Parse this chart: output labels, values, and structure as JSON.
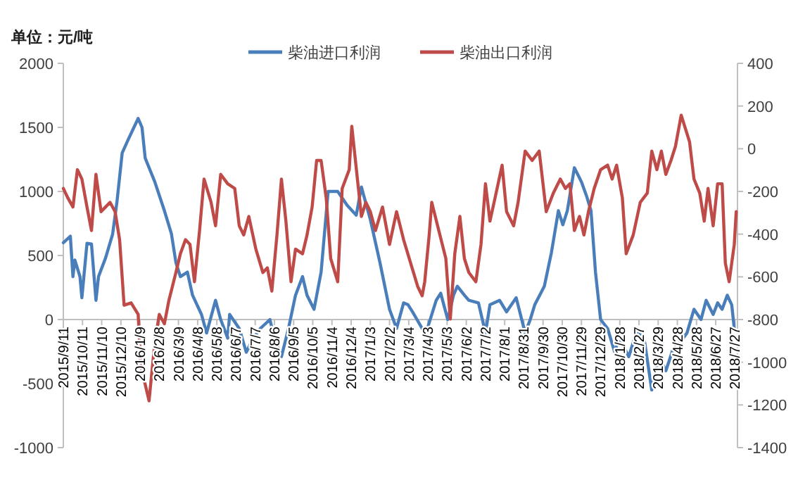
{
  "chart_data": {
    "type": "line",
    "ylabel": "单位：元/吨",
    "legend": "top",
    "xlim": [
      "2015-09-11",
      "2018-07-31"
    ],
    "ylim": [
      -1000,
      2000
    ],
    "yticks": [
      -1000,
      -500,
      0,
      500,
      1000,
      1500,
      2000
    ],
    "y2lim": [
      -1400,
      400
    ],
    "y2ticks": [
      -1400,
      -1200,
      -1000,
      -800,
      -600,
      -400,
      -200,
      0,
      200,
      400
    ],
    "xticks": [
      {
        "value": "2015-09-11",
        "label": "2015/9/11"
      },
      {
        "value": "2015-10-11",
        "label": "2015/10/11"
      },
      {
        "value": "2015-11-10",
        "label": "2015/11/10"
      },
      {
        "value": "2015-12-10",
        "label": "2015/12/10"
      },
      {
        "value": "2016-01-09",
        "label": "2016/1/9"
      },
      {
        "value": "2016-02-08",
        "label": "2016/2/8"
      },
      {
        "value": "2016-03-09",
        "label": "2016/3/9"
      },
      {
        "value": "2016-04-08",
        "label": "2016/4/8"
      },
      {
        "value": "2016-05-08",
        "label": "2016/5/8"
      },
      {
        "value": "2016-06-07",
        "label": "2016/6/7"
      },
      {
        "value": "2016-07-07",
        "label": "2016/7/7"
      },
      {
        "value": "2016-08-06",
        "label": "2016/8/6"
      },
      {
        "value": "2016-09-05",
        "label": "2016/9/5"
      },
      {
        "value": "2016-10-05",
        "label": "2016/10/5"
      },
      {
        "value": "2016-11-04",
        "label": "2016/11/4"
      },
      {
        "value": "2016-12-04",
        "label": "2016/12/4"
      },
      {
        "value": "2017-01-03",
        "label": "2017/1/3"
      },
      {
        "value": "2017-02-02",
        "label": "2017/2/2"
      },
      {
        "value": "2017-03-04",
        "label": "2017/3/4"
      },
      {
        "value": "2017-04-03",
        "label": "2017/4/3"
      },
      {
        "value": "2017-05-03",
        "label": "2017/5/3"
      },
      {
        "value": "2017-06-02",
        "label": "2017/6/2"
      },
      {
        "value": "2017-07-02",
        "label": "2017/7/2"
      },
      {
        "value": "2017-08-01",
        "label": "2017/8/1"
      },
      {
        "value": "2017-08-31",
        "label": "2017/8/31"
      },
      {
        "value": "2017-09-30",
        "label": "2017/9/30"
      },
      {
        "value": "2017-10-30",
        "label": "2017/10/30"
      },
      {
        "value": "2017-11-29",
        "label": "2017/11/29"
      },
      {
        "value": "2017-12-29",
        "label": "2017/12/29"
      },
      {
        "value": "2018-01-28",
        "label": "2018/1/28"
      },
      {
        "value": "2018-02-27",
        "label": "2018/2/27"
      },
      {
        "value": "2018-03-29",
        "label": "2018/3/29"
      },
      {
        "value": "2018-04-28",
        "label": "2018/4/28"
      },
      {
        "value": "2018-05-28",
        "label": "2018/5/28"
      },
      {
        "value": "2018-06-27",
        "label": "2018/6/27"
      },
      {
        "value": "2018-07-27",
        "label": "2018/7/27"
      }
    ],
    "series": [
      {
        "name": "柴油进口利润",
        "color": "#4a7ebb",
        "type": "line",
        "x": [
          "2015-09-11",
          "2015-09-22",
          "2015-09-26",
          "2015-09-29",
          "2015-10-07",
          "2015-10-10",
          "2015-10-18",
          "2015-10-25",
          "2015-11-01",
          "2015-11-05",
          "2015-11-16",
          "2015-11-27",
          "2015-12-04",
          "2015-12-12",
          "2015-12-21",
          "2016-01-06",
          "2016-01-12",
          "2016-01-17",
          "2016-02-01",
          "2016-02-16",
          "2016-02-27",
          "2016-03-05",
          "2016-03-12",
          "2016-03-23",
          "2016-03-31",
          "2016-04-14",
          "2016-04-22",
          "2016-05-06",
          "2016-05-14",
          "2016-05-25",
          "2016-05-28",
          "2016-06-12",
          "2016-06-23",
          "2016-07-04",
          "2016-07-15",
          "2016-07-30",
          "2016-08-06",
          "2016-08-17",
          "2016-08-28",
          "2016-09-08",
          "2016-09-19",
          "2016-09-26",
          "2016-10-07",
          "2016-10-18",
          "2016-10-29",
          "2016-11-13",
          "2016-11-28",
          "2016-12-12",
          "2016-12-20",
          "2017-01-03",
          "2017-01-18",
          "2017-02-02",
          "2017-02-13",
          "2017-02-24",
          "2017-03-03",
          "2017-03-10",
          "2017-03-25",
          "2017-03-31",
          "2017-04-16",
          "2017-04-23",
          "2017-05-04",
          "2017-05-13",
          "2017-05-19",
          "2017-05-30",
          "2017-06-06",
          "2017-06-21",
          "2017-07-02",
          "2017-07-09",
          "2017-07-24",
          "2017-08-04",
          "2017-08-19",
          "2017-09-02",
          "2017-09-10",
          "2017-09-17",
          "2017-10-02",
          "2017-10-13",
          "2017-10-24",
          "2017-10-31",
          "2017-11-07",
          "2017-11-18",
          "2017-11-29",
          "2017-12-07",
          "2017-12-14",
          "2017-12-21",
          "2017-12-29",
          "2018-01-09",
          "2018-01-20",
          "2018-01-27",
          "2018-02-11",
          "2018-02-25",
          "2018-03-08",
          "2018-03-19",
          "2018-03-30",
          "2018-04-10",
          "2018-04-21",
          "2018-05-02",
          "2018-05-13",
          "2018-05-24",
          "2018-06-04",
          "2018-06-12",
          "2018-06-23",
          "2018-06-30",
          "2018-07-07",
          "2018-07-15",
          "2018-07-22",
          "2018-07-26"
        ],
        "values": [
          600,
          650,
          335,
          465,
          335,
          170,
          595,
          590,
          150,
          335,
          480,
          665,
          925,
          1300,
          1400,
          1570,
          1500,
          1260,
          1075,
          850,
          670,
          445,
          335,
          370,
          190,
          40,
          -105,
          150,
          0,
          -145,
          40,
          -70,
          -255,
          -145,
          -70,
          0,
          -145,
          -290,
          -70,
          190,
          335,
          190,
          80,
          370,
          1000,
          1000,
          890,
          815,
          1035,
          780,
          445,
          80,
          -70,
          130,
          115,
          60,
          -70,
          -105,
          150,
          205,
          0,
          190,
          260,
          190,
          150,
          130,
          -105,
          115,
          150,
          60,
          170,
          -105,
          0,
          115,
          260,
          520,
          850,
          740,
          850,
          1185,
          1075,
          965,
          850,
          370,
          0,
          -70,
          -255,
          -145,
          -290,
          -70,
          -180,
          -550,
          -290,
          -400,
          -235,
          -180,
          -105,
          80,
          0,
          150,
          40,
          130,
          80,
          190,
          115,
          -70
        ]
      },
      {
        "name": "柴油出口利润",
        "color": "#be4b48",
        "type": "line",
        "axis": "y2",
        "x": [
          "2015-09-11",
          "2015-09-18",
          "2015-09-26",
          "2015-10-03",
          "2015-10-10",
          "2015-10-18",
          "2015-10-25",
          "2015-11-01",
          "2015-11-09",
          "2015-11-16",
          "2015-11-23",
          "2015-12-01",
          "2015-12-08",
          "2015-12-15",
          "2015-12-26",
          "2016-01-06",
          "2016-01-10",
          "2016-01-17",
          "2016-01-23",
          "2016-02-01",
          "2016-02-08",
          "2016-02-16",
          "2016-02-23",
          "2016-03-05",
          "2016-03-12",
          "2016-03-20",
          "2016-03-27",
          "2016-04-03",
          "2016-04-11",
          "2016-04-18",
          "2016-04-29",
          "2016-05-06",
          "2016-05-14",
          "2016-05-25",
          "2016-06-05",
          "2016-06-12",
          "2016-06-19",
          "2016-06-27",
          "2016-07-08",
          "2016-07-19",
          "2016-07-26",
          "2016-08-02",
          "2016-08-10",
          "2016-08-17",
          "2016-08-24",
          "2016-09-01",
          "2016-09-08",
          "2016-09-19",
          "2016-09-26",
          "2016-10-04",
          "2016-10-11",
          "2016-10-18",
          "2016-10-26",
          "2016-11-02",
          "2016-11-13",
          "2016-11-20",
          "2016-12-01",
          "2016-12-05",
          "2016-12-20",
          "2016-12-27",
          "2017-01-03",
          "2017-01-11",
          "2017-01-22",
          "2017-02-02",
          "2017-02-13",
          "2017-02-24",
          "2017-03-07",
          "2017-03-18",
          "2017-03-25",
          "2017-03-29",
          "2017-04-05",
          "2017-04-09",
          "2017-04-20",
          "2017-05-01",
          "2017-05-08",
          "2017-05-15",
          "2017-05-23",
          "2017-05-30",
          "2017-06-06",
          "2017-06-17",
          "2017-06-25",
          "2017-07-02",
          "2017-07-09",
          "2017-07-17",
          "2017-07-28",
          "2017-08-04",
          "2017-08-15",
          "2017-08-22",
          "2017-09-02",
          "2017-09-13",
          "2017-09-24",
          "2017-10-05",
          "2017-10-16",
          "2017-10-27",
          "2017-11-04",
          "2017-11-11",
          "2017-11-18",
          "2017-11-26",
          "2017-12-03",
          "2017-12-10",
          "2017-12-19",
          "2017-12-29",
          "2018-01-09",
          "2018-01-16",
          "2018-01-23",
          "2018-02-01",
          "2018-02-07",
          "2018-02-18",
          "2018-03-01",
          "2018-03-12",
          "2018-03-19",
          "2018-03-27",
          "2018-04-03",
          "2018-04-10",
          "2018-04-18",
          "2018-04-25",
          "2018-05-04",
          "2018-05-17",
          "2018-05-24",
          "2018-06-02",
          "2018-06-09",
          "2018-06-15",
          "2018-06-23",
          "2018-06-30",
          "2018-07-07",
          "2018-07-12",
          "2018-07-18",
          "2018-07-26",
          "2018-07-29"
        ],
        "values": [
          -186,
          -230,
          -273,
          -98,
          -142,
          -273,
          -383,
          -120,
          -295,
          -273,
          -251,
          -295,
          -426,
          -733,
          -722,
          -776,
          -1017,
          -1104,
          -1181,
          -908,
          -776,
          -820,
          -711,
          -580,
          -492,
          -426,
          -448,
          -623,
          -383,
          -142,
          -251,
          -361,
          -120,
          -164,
          -186,
          -361,
          -404,
          -317,
          -470,
          -580,
          -558,
          -667,
          -404,
          -142,
          -339,
          -623,
          -470,
          -492,
          -404,
          -273,
          -55,
          -55,
          -230,
          -514,
          -623,
          -186,
          -98,
          105,
          -317,
          -251,
          -295,
          -383,
          -273,
          -448,
          -295,
          -426,
          -536,
          -645,
          -689,
          -623,
          -404,
          -251,
          -383,
          -514,
          -798,
          -492,
          -317,
          -514,
          -580,
          -623,
          -448,
          -164,
          -339,
          -230,
          -77,
          -295,
          -361,
          -251,
          -11,
          -55,
          -11,
          -295,
          -208,
          -142,
          -186,
          -164,
          -383,
          -317,
          -404,
          -295,
          -186,
          -98,
          -77,
          -142,
          -77,
          -230,
          -492,
          -404,
          -251,
          -208,
          -11,
          -98,
          -11,
          -120,
          -55,
          11,
          157,
          33,
          -142,
          -208,
          -339,
          -186,
          -361,
          -164,
          -164,
          -536,
          -623,
          -448,
          -295
        ]
      }
    ]
  }
}
